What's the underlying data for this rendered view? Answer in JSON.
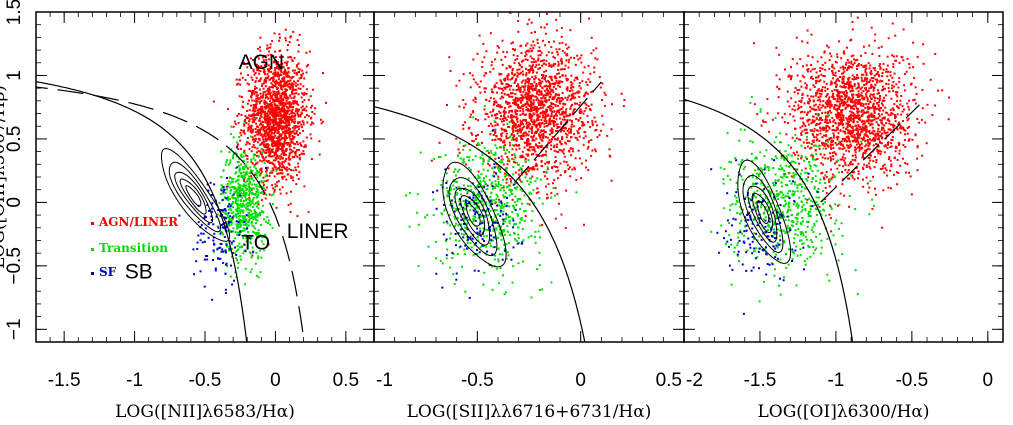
{
  "chart_data": [
    {
      "type": "scatter",
      "panel": "nii",
      "xlabel": "LOG([NII]λ6583/Hα)",
      "ylabel": "LOG([OIII]λ5007/Hβ)",
      "xlim": [
        -1.7,
        0.7
      ],
      "ylim": [
        -1.1,
        1.5
      ],
      "xticks": [
        "-1.5",
        "-1",
        "-0.5",
        "0",
        "0.5"
      ],
      "yticks": [
        "−1",
        "−0.5",
        "0",
        "0.5",
        "1",
        "1.5"
      ],
      "region_labels": [
        {
          "text": "AGN",
          "x": -0.1,
          "y": 1.05
        },
        {
          "text": "TO",
          "x": -0.14,
          "y": -0.37
        },
        {
          "text": "LINER",
          "x": 0.3,
          "y": -0.28
        },
        {
          "text": "SB",
          "x": -0.97,
          "y": -0.6
        }
      ],
      "legend": {
        "placement": "left-middle",
        "entries": [
          {
            "label": "AGN/LINER",
            "color": "#ff0000"
          },
          {
            "label": "Transition",
            "color": "#00dd00"
          },
          {
            "label": "SF",
            "color": "#0000cc"
          }
        ]
      },
      "series": [
        {
          "class": "AGN/LINER",
          "color": "#ff0000",
          "cx": 0.0,
          "cy": 0.68,
          "sx": 0.11,
          "sy": 0.26,
          "n": 1600
        },
        {
          "class": "Transition",
          "color": "#00dd00",
          "cx": -0.23,
          "cy": 0.0,
          "sx": 0.08,
          "sy": 0.22,
          "n": 600
        },
        {
          "class": "SF",
          "color": "#0000cc",
          "cx": -0.4,
          "cy": -0.2,
          "sx": 0.09,
          "sy": 0.22,
          "n": 140
        }
      ],
      "curves": {
        "kauffmann": "nii_ka",
        "kewley": "nii_ke"
      },
      "contours": {
        "cx": -0.58,
        "cy": 0.05,
        "a": 0.42,
        "b": 0.11,
        "angle_deg": -58,
        "levels": [
          1.0,
          0.75,
          0.55,
          0.38,
          0.22
        ]
      }
    },
    {
      "type": "scatter",
      "panel": "sii",
      "xlabel": "LOG([SII]λλ6716+6731/Hα)",
      "xlim": [
        -1.0,
        0.5
      ],
      "ylim": [
        -1.1,
        1.5
      ],
      "xticks": [
        "-1",
        "-0.5",
        "0",
        "0.5"
      ],
      "series": [
        {
          "class": "AGN/LINER",
          "color": "#ff0000",
          "cx": -0.22,
          "cy": 0.72,
          "sx": 0.14,
          "sy": 0.26,
          "n": 1600
        },
        {
          "class": "Transition",
          "color": "#00dd00",
          "cx": -0.45,
          "cy": 0.0,
          "sx": 0.13,
          "sy": 0.25,
          "n": 600
        },
        {
          "class": "SF",
          "color": "#0000cc",
          "cx": -0.5,
          "cy": -0.15,
          "sx": 0.1,
          "sy": 0.22,
          "n": 140
        }
      ],
      "curves": {
        "kewley": "sii_ke",
        "seyfert_liner": "sii_sl"
      },
      "contours": {
        "cx": -0.52,
        "cy": -0.1,
        "a": 0.42,
        "b": 0.11,
        "angle_deg": -75,
        "levels": [
          1.0,
          0.75,
          0.55,
          0.38,
          0.22
        ]
      }
    },
    {
      "type": "scatter",
      "panel": "oi",
      "xlabel": "LOG([OI]λ6300/Hα)",
      "xlim": [
        -2.0,
        0.1
      ],
      "ylim": [
        -1.1,
        1.5
      ],
      "xticks": [
        "-2",
        "-1.5",
        "-1",
        "-0.5",
        "0"
      ],
      "series": [
        {
          "class": "AGN/LINER",
          "color": "#ff0000",
          "cx": -0.9,
          "cy": 0.7,
          "sx": 0.2,
          "sy": 0.26,
          "n": 1600
        },
        {
          "class": "Transition",
          "color": "#00dd00",
          "cx": -1.35,
          "cy": 0.0,
          "sx": 0.18,
          "sy": 0.25,
          "n": 600
        },
        {
          "class": "SF",
          "color": "#0000cc",
          "cx": -1.5,
          "cy": -0.15,
          "sx": 0.12,
          "sy": 0.22,
          "n": 140
        }
      ],
      "curves": {
        "kewley": "oi_ke",
        "seyfert_liner": "oi_sl"
      },
      "contours": {
        "cx": -1.48,
        "cy": -0.08,
        "a": 0.42,
        "b": 0.12,
        "angle_deg": -72,
        "levels": [
          1.0,
          0.75,
          0.55,
          0.38,
          0.22
        ]
      }
    }
  ]
}
